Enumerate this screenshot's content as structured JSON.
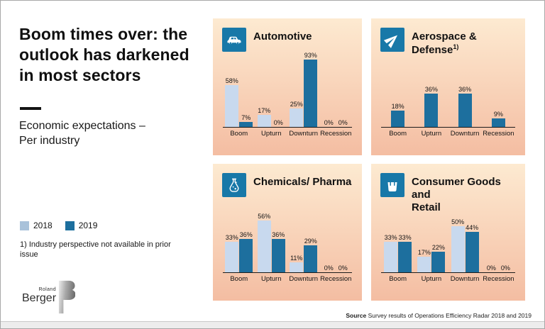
{
  "slide": {
    "title": "Boom times over: the outlook has darkened in most sectors",
    "subtitle": "Economic expectations –\nPer industry",
    "legend": [
      {
        "label": "2018",
        "color": "#a9c2da"
      },
      {
        "label": "2019",
        "color": "#1d6f9e"
      }
    ],
    "footnote": "1) Industry perspective not available in prior issue",
    "source_label": "Source",
    "source_text": " Survey results of Operations Efficiency Radar 2018 and 2019",
    "logo_top": "Roland",
    "logo_bottom": "Berger"
  },
  "colors": {
    "bar_2018": "#c8d9ee",
    "bar_2019": "#1d6f9e",
    "icon_bg": "#1878a8",
    "panel_gradient_top": "#fdead1",
    "panel_gradient_bottom": "#f4bda2",
    "axis": "#1b1b1b"
  },
  "chart_data": [
    {
      "type": "bar",
      "title": "Automotive",
      "icon": "car-icon",
      "footnote_marker": "",
      "categories": [
        "Boom",
        "Upturn",
        "Downturn",
        "Recession"
      ],
      "series": [
        {
          "name": "2018",
          "color": "#c8d9ee",
          "values": [
            58,
            17,
            25,
            0
          ]
        },
        {
          "name": "2019",
          "color": "#1d6f9e",
          "values": [
            7,
            0,
            93,
            0
          ]
        }
      ],
      "value_suffix": "%",
      "ylim": [
        0,
        100
      ],
      "grid": false,
      "legend_position": "none"
    },
    {
      "type": "bar",
      "title": "Aerospace &\nDefense",
      "icon": "plane-icon",
      "footnote_marker": "1)",
      "categories": [
        "Boom",
        "Upturn",
        "Downturn",
        "Recession"
      ],
      "series": [
        {
          "name": "2019",
          "color": "#1d6f9e",
          "values": [
            18,
            36,
            36,
            9
          ]
        }
      ],
      "value_suffix": "%",
      "ylim": [
        0,
        100
      ],
      "grid": false,
      "legend_position": "none"
    },
    {
      "type": "bar",
      "title": "Chemicals/ Pharma",
      "icon": "flask-icon",
      "footnote_marker": "",
      "categories": [
        "Boom",
        "Upturn",
        "Downturn",
        "Recession"
      ],
      "series": [
        {
          "name": "2018",
          "color": "#c8d9ee",
          "values": [
            33,
            56,
            11,
            0
          ]
        },
        {
          "name": "2019",
          "color": "#1d6f9e",
          "values": [
            36,
            36,
            29,
            0
          ]
        }
      ],
      "value_suffix": "%",
      "ylim": [
        0,
        100
      ],
      "grid": false,
      "legend_position": "none"
    },
    {
      "type": "bar",
      "title": "Consumer Goods and\nRetail",
      "icon": "shopping-bag-icon",
      "footnote_marker": "",
      "categories": [
        "Boom",
        "Upturn",
        "Downturn",
        "Recession"
      ],
      "series": [
        {
          "name": "2018",
          "color": "#c8d9ee",
          "values": [
            33,
            17,
            50,
            0
          ]
        },
        {
          "name": "2019",
          "color": "#1d6f9e",
          "values": [
            33,
            22,
            44,
            0
          ]
        }
      ],
      "value_suffix": "%",
      "ylim": [
        0,
        100
      ],
      "grid": false,
      "legend_position": "none"
    }
  ]
}
